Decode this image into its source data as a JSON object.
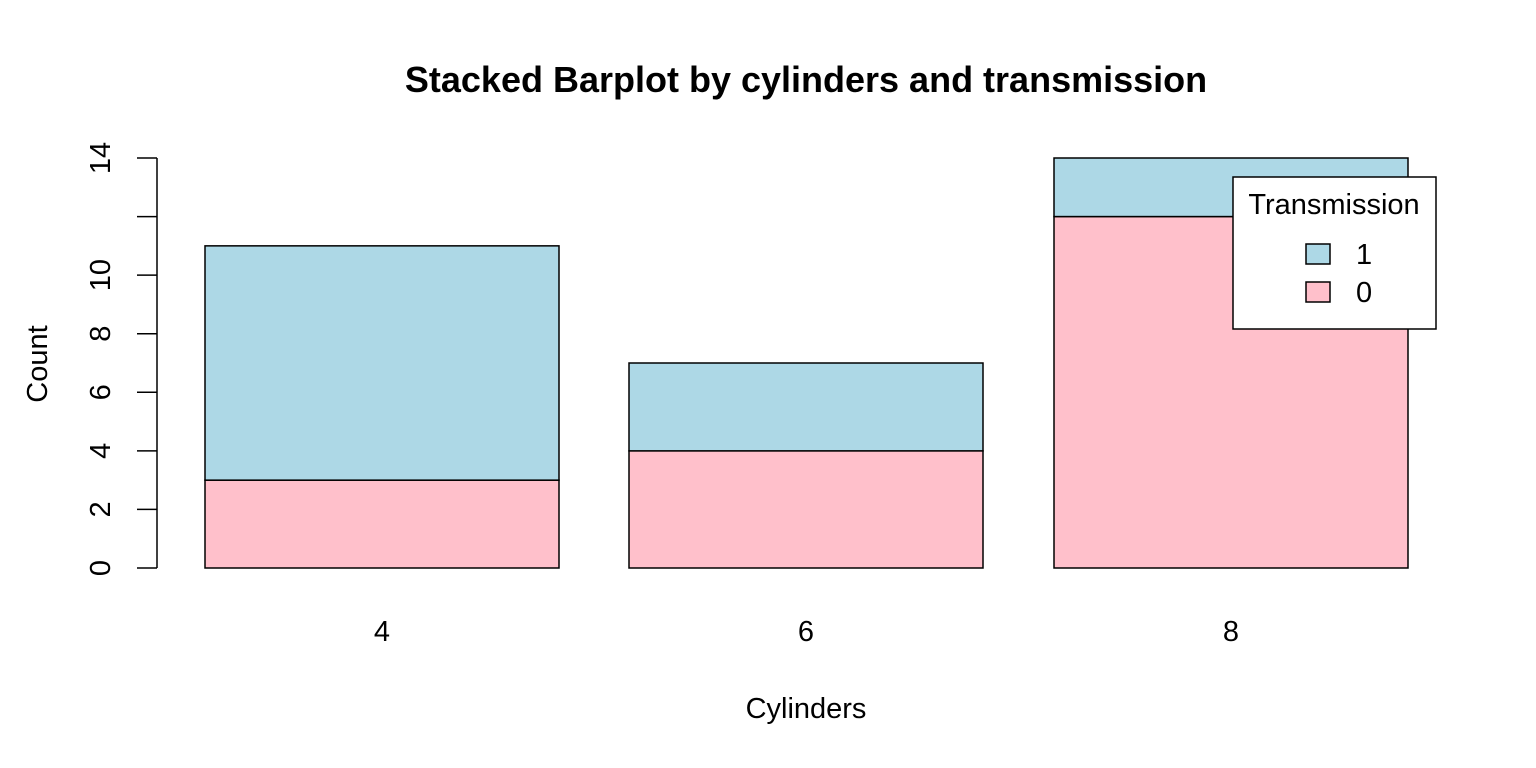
{
  "chart_data": {
    "type": "bar",
    "stacked": true,
    "title": "Stacked Barplot by cylinders and transmission",
    "xlabel": "Cylinders",
    "ylabel": "Count",
    "categories": [
      "4",
      "6",
      "8"
    ],
    "series": [
      {
        "name": "0",
        "color": "#ffc0cb",
        "values": [
          3,
          4,
          12
        ]
      },
      {
        "name": "1",
        "color": "#add8e6",
        "values": [
          8,
          3,
          2
        ]
      }
    ],
    "ylim": [
      0,
      14
    ],
    "y_ticks": [
      0,
      2,
      4,
      6,
      8,
      10,
      12,
      14
    ],
    "y_tick_labels": [
      "0",
      "2",
      "4",
      "6",
      "8",
      "10",
      "",
      "14"
    ],
    "legend": {
      "title": "Transmission",
      "position": "top-right",
      "entries": [
        {
          "label": "1",
          "color": "#add8e6"
        },
        {
          "label": "0",
          "color": "#ffc0cb"
        }
      ]
    },
    "grid": false
  }
}
